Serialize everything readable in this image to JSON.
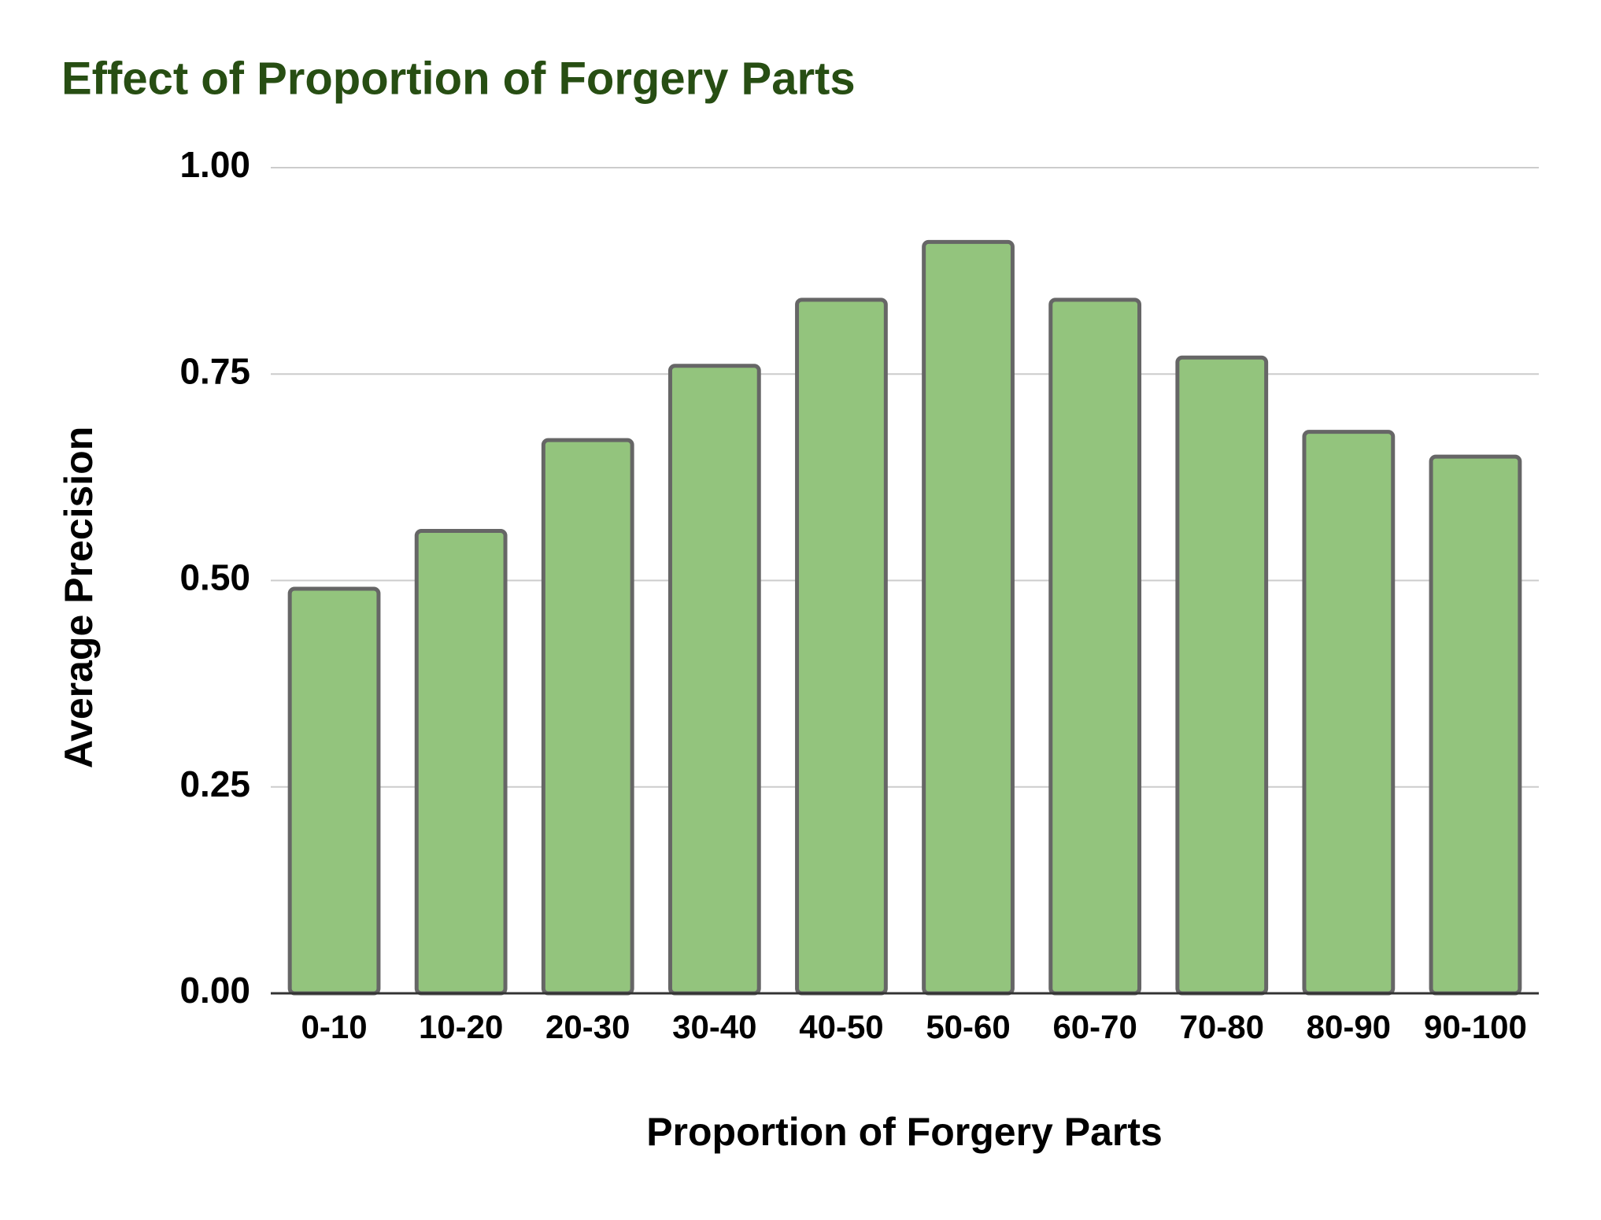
{
  "chart_data": {
    "type": "bar",
    "title": "Effect of Proportion of Forgery Parts",
    "x_label": "Proportion of Forgery Parts",
    "y_label": "Average Precision",
    "categories": [
      "0-10",
      "10-20",
      "20-30",
      "30-40",
      "40-50",
      "50-60",
      "60-70",
      "70-80",
      "80-90",
      "90-100"
    ],
    "values": [
      0.49,
      0.56,
      0.67,
      0.76,
      0.84,
      0.91,
      0.84,
      0.77,
      0.68,
      0.65
    ],
    "color": "#93c47d",
    "ylim": [
      0,
      1
    ],
    "yticks": [
      {
        "value": 0,
        "label": "0.00"
      },
      {
        "value": 0.25,
        "label": "0.25"
      },
      {
        "value": 0.5,
        "label": "0.50"
      },
      {
        "value": 0.75,
        "label": "0.75"
      },
      {
        "value": 1,
        "label": "1.00"
      }
    ],
    "grid": true
  }
}
